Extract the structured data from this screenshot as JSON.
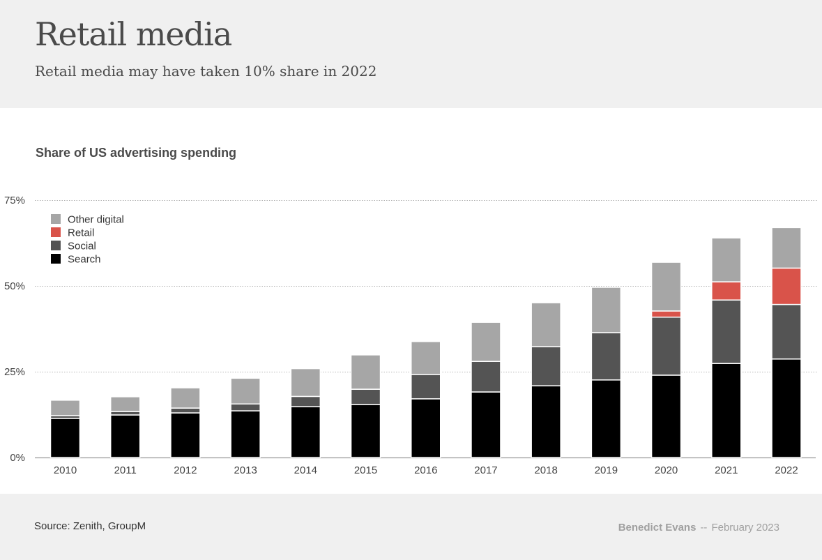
{
  "header": {
    "title": "Retail media",
    "subtitle": "Retail media may have taken 10% share in 2022"
  },
  "footer": {
    "source": "Source: Zenith, GroupM",
    "author": "Benedict Evans",
    "separator": "--",
    "date": "February 2023"
  },
  "chart_data": {
    "type": "bar",
    "stacked": true,
    "title": "Share of US advertising spending",
    "xlabel": "",
    "ylabel": "",
    "ylim": [
      0,
      75
    ],
    "yticks": [
      0,
      25,
      50,
      75
    ],
    "ytick_labels": [
      "0%",
      "25%",
      "50%",
      "75%"
    ],
    "grid": true,
    "legend_position": "top-left",
    "categories": [
      "2010",
      "2011",
      "2012",
      "2013",
      "2014",
      "2015",
      "2016",
      "2017",
      "2018",
      "2019",
      "2020",
      "2021",
      "2022"
    ],
    "series": [
      {
        "name": "Search",
        "color": "#000000",
        "values": [
          11.4,
          12.4,
          13.0,
          13.6,
          14.8,
          15.4,
          17.1,
          19.1,
          20.9,
          22.6,
          24.0,
          27.4,
          28.7
        ]
      },
      {
        "name": "Social",
        "color": "#545454",
        "values": [
          0.8,
          1.0,
          1.4,
          2.0,
          3.0,
          4.5,
          7.1,
          8.9,
          11.4,
          13.8,
          16.9,
          18.5,
          15.9
        ]
      },
      {
        "name": "Retail",
        "color": "#d9534a",
        "values": [
          0,
          0,
          0,
          0,
          0,
          0,
          0,
          0,
          0,
          0,
          1.8,
          5.3,
          10.6
        ]
      },
      {
        "name": "Other digital",
        "color": "#a6a6a6",
        "values": [
          4.5,
          4.3,
          5.9,
          7.5,
          8.1,
          10.0,
          9.6,
          11.4,
          12.8,
          13.2,
          14.2,
          12.8,
          11.8
        ]
      }
    ],
    "legend_order": [
      "Other digital",
      "Retail",
      "Social",
      "Search"
    ]
  }
}
